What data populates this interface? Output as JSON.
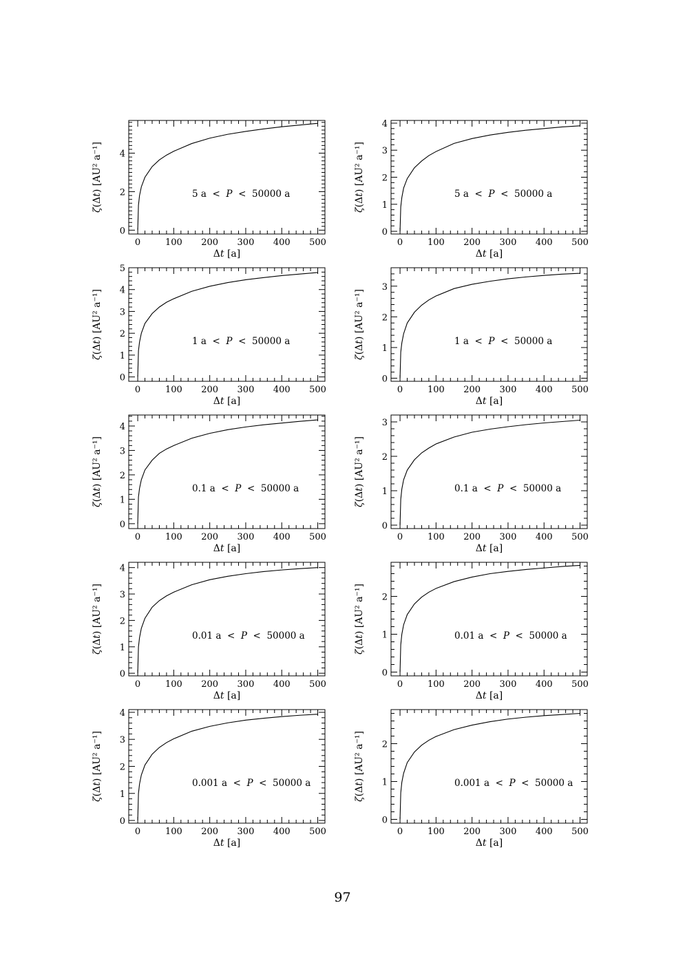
{
  "page": {
    "number": "97"
  },
  "chart_data": [
    {
      "type": "line",
      "panel": "r1c1",
      "annotation": "5 a  <  P  <  50000 a",
      "xlabel": "Δt [a]",
      "ylabel": "ζ(Δt) [AU² a⁻¹]",
      "xlim": [
        -25,
        520
      ],
      "ylim": [
        -0.2,
        5.7
      ],
      "xticks": [
        0,
        100,
        200,
        300,
        400,
        500
      ],
      "yticks": [
        0,
        2,
        4
      ],
      "series": [
        {
          "x": [
            0,
            2,
            5,
            10,
            20,
            40,
            60,
            80,
            100,
            150,
            200,
            250,
            300,
            350,
            400,
            450,
            500
          ],
          "values": [
            0,
            1.3,
            1.8,
            2.25,
            2.75,
            3.3,
            3.65,
            3.9,
            4.1,
            4.5,
            4.78,
            4.98,
            5.13,
            5.26,
            5.37,
            5.46,
            5.55
          ]
        }
      ]
    },
    {
      "type": "line",
      "panel": "r1c2",
      "annotation": "5 a  <  P  <  50000 a",
      "xlabel": "Δt [a]",
      "ylabel": "ζ(Δt) [AU² a⁻¹]",
      "xlim": [
        -25,
        520
      ],
      "ylim": [
        -0.1,
        4.1
      ],
      "xticks": [
        0,
        100,
        200,
        300,
        400,
        500
      ],
      "yticks": [
        0,
        1,
        2,
        3,
        4
      ],
      "series": [
        {
          "x": [
            0,
            2,
            5,
            10,
            20,
            40,
            60,
            80,
            100,
            150,
            200,
            250,
            300,
            350,
            400,
            450,
            500
          ],
          "values": [
            0,
            0.9,
            1.25,
            1.6,
            1.95,
            2.35,
            2.6,
            2.8,
            2.95,
            3.25,
            3.43,
            3.56,
            3.66,
            3.74,
            3.8,
            3.86,
            3.9
          ]
        }
      ]
    },
    {
      "type": "line",
      "panel": "r2c1",
      "annotation": "1 a  <  P  <  50000 a",
      "xlabel": "Δt [a]",
      "ylabel": "ζ(Δt) [AU² a⁻¹]",
      "xlim": [
        -25,
        520
      ],
      "ylim": [
        -0.2,
        5.0
      ],
      "xticks": [
        0,
        100,
        200,
        300,
        400,
        500
      ],
      "yticks": [
        0,
        1,
        2,
        3,
        4,
        5
      ],
      "series": [
        {
          "x": [
            0,
            2,
            5,
            10,
            20,
            40,
            60,
            80,
            100,
            150,
            200,
            250,
            300,
            350,
            400,
            450,
            500
          ],
          "values": [
            0,
            1.2,
            1.6,
            2.0,
            2.45,
            2.9,
            3.2,
            3.42,
            3.58,
            3.92,
            4.15,
            4.32,
            4.45,
            4.55,
            4.64,
            4.71,
            4.78
          ]
        }
      ]
    },
    {
      "type": "line",
      "panel": "r2c2",
      "annotation": "1 a  <  P  <  50000 a",
      "xlabel": "Δt [a]",
      "ylabel": "ζ(Δt) [AU² a⁻¹]",
      "xlim": [
        -25,
        520
      ],
      "ylim": [
        -0.1,
        3.6
      ],
      "xticks": [
        0,
        100,
        200,
        300,
        400,
        500
      ],
      "yticks": [
        0,
        1,
        2,
        3
      ],
      "series": [
        {
          "x": [
            0,
            2,
            5,
            10,
            20,
            40,
            60,
            80,
            100,
            150,
            200,
            250,
            300,
            350,
            400,
            450,
            500
          ],
          "values": [
            0,
            0.85,
            1.15,
            1.45,
            1.8,
            2.15,
            2.38,
            2.55,
            2.68,
            2.92,
            3.06,
            3.16,
            3.24,
            3.3,
            3.35,
            3.39,
            3.42
          ]
        }
      ]
    },
    {
      "type": "line",
      "panel": "r3c1",
      "annotation": "0.1 a  <  P  <  50000 a",
      "xlabel": "Δt [a]",
      "ylabel": "ζ(Δt) [AU² a⁻¹]",
      "xlim": [
        -25,
        520
      ],
      "ylim": [
        -0.2,
        4.45
      ],
      "xticks": [
        0,
        100,
        200,
        300,
        400,
        500
      ],
      "yticks": [
        0,
        1,
        2,
        3,
        4
      ],
      "series": [
        {
          "x": [
            0,
            2,
            5,
            10,
            20,
            40,
            60,
            80,
            100,
            150,
            200,
            250,
            300,
            350,
            400,
            450,
            500
          ],
          "values": [
            0,
            1.1,
            1.45,
            1.8,
            2.2,
            2.6,
            2.88,
            3.06,
            3.2,
            3.5,
            3.7,
            3.85,
            3.96,
            4.05,
            4.12,
            4.19,
            4.25
          ]
        }
      ]
    },
    {
      "type": "line",
      "panel": "r3c2",
      "annotation": "0.1 a  <  P  <  50000 a",
      "xlabel": "Δt [a]",
      "ylabel": "ζ(Δt) [AU² a⁻¹]",
      "xlim": [
        -25,
        520
      ],
      "ylim": [
        -0.1,
        3.2
      ],
      "xticks": [
        0,
        100,
        200,
        300,
        400,
        500
      ],
      "yticks": [
        0,
        1,
        2,
        3
      ],
      "series": [
        {
          "x": [
            0,
            2,
            5,
            10,
            20,
            40,
            60,
            80,
            100,
            150,
            200,
            250,
            300,
            350,
            400,
            450,
            500
          ],
          "values": [
            0,
            0.75,
            1.05,
            1.32,
            1.6,
            1.9,
            2.1,
            2.24,
            2.36,
            2.56,
            2.7,
            2.79,
            2.86,
            2.92,
            2.97,
            3.01,
            3.05
          ]
        }
      ]
    },
    {
      "type": "line",
      "panel": "r4c1",
      "annotation": "0.01 a  <  P  <  50000 a",
      "xlabel": "Δt [a]",
      "ylabel": "ζ(Δt) [AU² a⁻¹]",
      "xlim": [
        -25,
        520
      ],
      "ylim": [
        -0.1,
        4.2
      ],
      "xticks": [
        0,
        100,
        200,
        300,
        400,
        500
      ],
      "yticks": [
        0,
        1,
        2,
        3,
        4
      ],
      "series": [
        {
          "x": [
            0,
            2,
            5,
            10,
            20,
            40,
            60,
            80,
            100,
            150,
            200,
            250,
            300,
            350,
            400,
            450,
            500
          ],
          "values": [
            0,
            1.0,
            1.35,
            1.7,
            2.08,
            2.5,
            2.75,
            2.93,
            3.07,
            3.35,
            3.54,
            3.67,
            3.77,
            3.85,
            3.91,
            3.96,
            4.0
          ]
        }
      ]
    },
    {
      "type": "line",
      "panel": "r4c2",
      "annotation": "0.01 a  <  P  <  50000 a",
      "xlabel": "Δt [a]",
      "ylabel": "ζ(Δt) [AU² a⁻¹]",
      "xlim": [
        -25,
        520
      ],
      "ylim": [
        -0.1,
        2.9
      ],
      "xticks": [
        0,
        100,
        200,
        300,
        400,
        500
      ],
      "yticks": [
        0,
        1,
        2
      ],
      "series": [
        {
          "x": [
            0,
            2,
            5,
            10,
            20,
            40,
            60,
            80,
            100,
            150,
            200,
            250,
            300,
            350,
            400,
            450,
            500
          ],
          "values": [
            0,
            0.72,
            1.0,
            1.25,
            1.52,
            1.8,
            1.98,
            2.11,
            2.21,
            2.39,
            2.51,
            2.6,
            2.66,
            2.71,
            2.75,
            2.79,
            2.82
          ]
        }
      ]
    },
    {
      "type": "line",
      "panel": "r5c1",
      "annotation": "0.001 a  <  P  <  50000 a",
      "xlabel": "Δt [a]",
      "ylabel": "ζ(Δt) [AU² a⁻¹]",
      "xlim": [
        -25,
        520
      ],
      "ylim": [
        -0.1,
        4.1
      ],
      "xticks": [
        0,
        100,
        200,
        300,
        400,
        500
      ],
      "yticks": [
        0,
        1,
        2,
        3,
        4
      ],
      "series": [
        {
          "x": [
            0,
            2,
            5,
            10,
            20,
            40,
            60,
            80,
            100,
            150,
            200,
            250,
            300,
            350,
            400,
            450,
            500
          ],
          "values": [
            0,
            1.0,
            1.35,
            1.68,
            2.05,
            2.45,
            2.7,
            2.88,
            3.02,
            3.3,
            3.48,
            3.61,
            3.71,
            3.78,
            3.84,
            3.89,
            3.93
          ]
        }
      ]
    },
    {
      "type": "line",
      "panel": "r5c2",
      "annotation": "0.001 a  <  P  <  50000 a",
      "xlabel": "Δt [a]",
      "ylabel": "ζ(Δt) [AU² a⁻¹]",
      "xlim": [
        -25,
        520
      ],
      "ylim": [
        -0.1,
        2.9
      ],
      "xticks": [
        0,
        100,
        200,
        300,
        400,
        500
      ],
      "yticks": [
        0,
        1,
        2
      ],
      "series": [
        {
          "x": [
            0,
            2,
            5,
            10,
            20,
            40,
            60,
            80,
            100,
            150,
            200,
            250,
            300,
            350,
            400,
            450,
            500
          ],
          "values": [
            0,
            0.7,
            0.98,
            1.22,
            1.5,
            1.78,
            1.96,
            2.09,
            2.19,
            2.37,
            2.49,
            2.58,
            2.65,
            2.7,
            2.74,
            2.77,
            2.8
          ]
        }
      ]
    }
  ]
}
